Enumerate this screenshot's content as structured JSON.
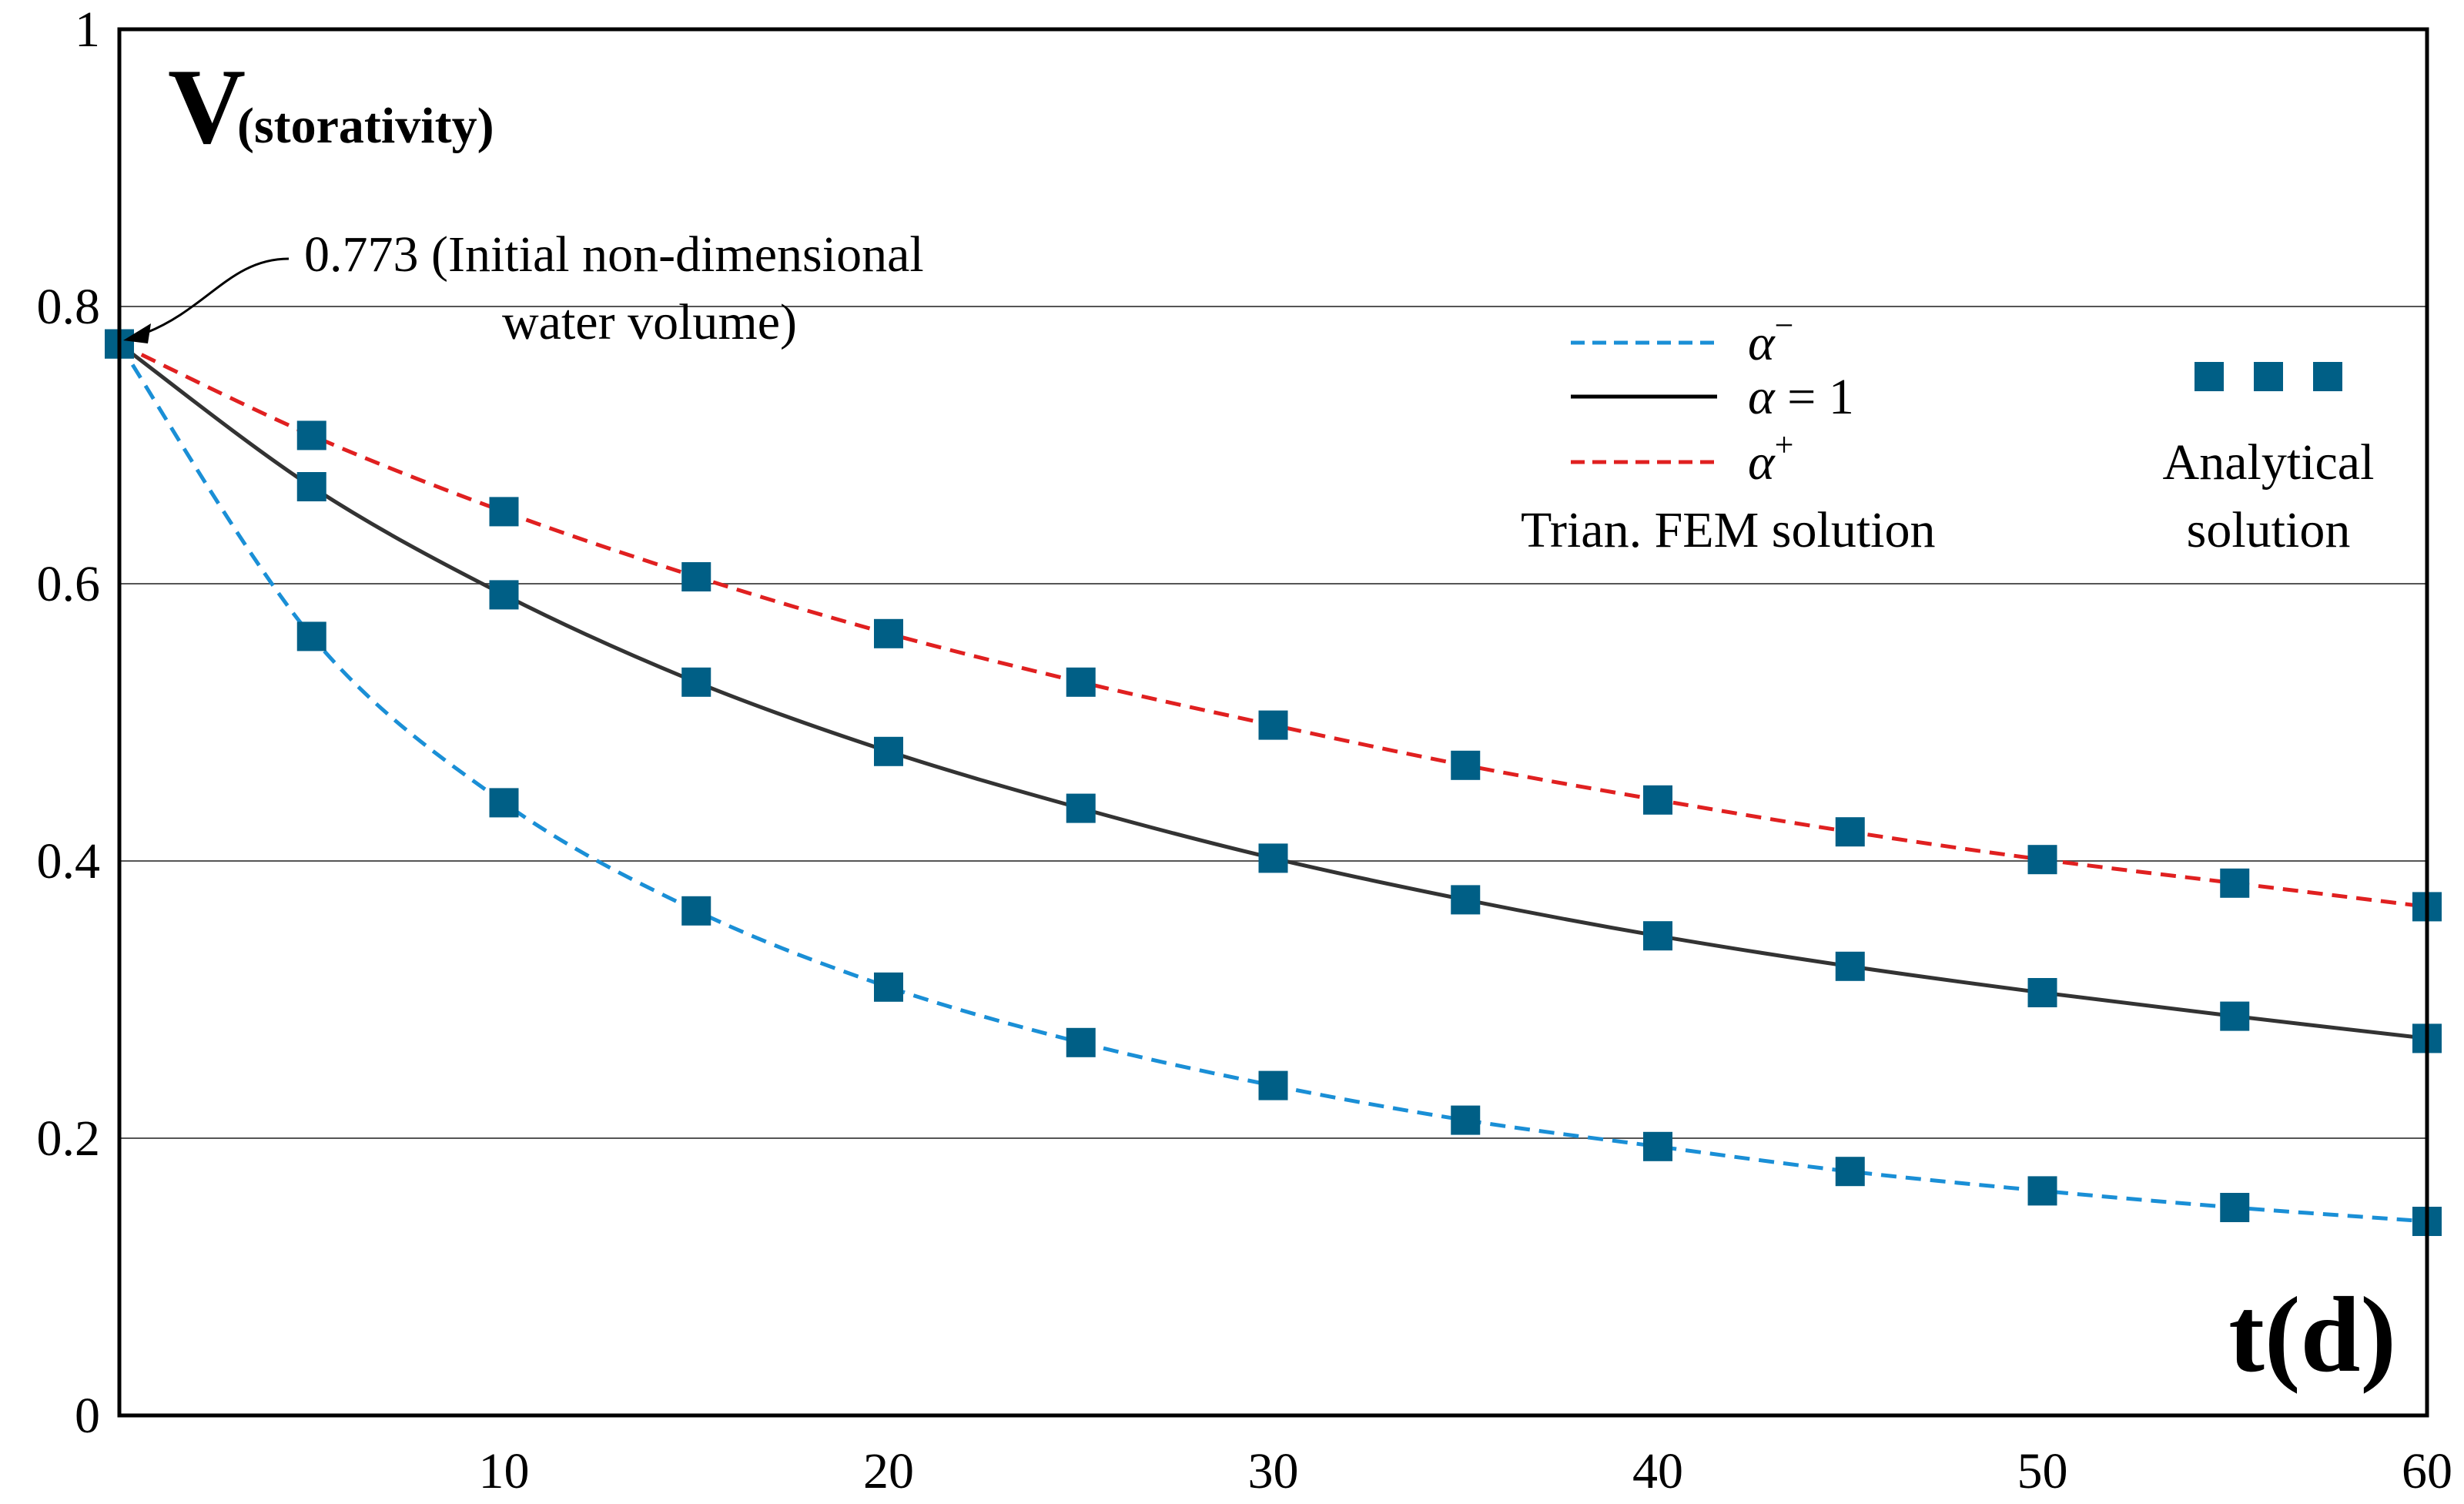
{
  "chart_data": {
    "type": "line",
    "xlabel": "t(d)",
    "ylabel": "V",
    "ylabel_sub": "(storativity)",
    "xlim": [
      0,
      60
    ],
    "ylim": [
      0,
      1
    ],
    "x_ticks": [
      10,
      20,
      30,
      40,
      50,
      60
    ],
    "y_ticks": [
      0,
      0.2,
      0.4,
      0.6,
      0.8,
      1
    ],
    "y_tick_labels": [
      "0",
      "0.2",
      "0.4",
      "0.6",
      "0.8",
      "1"
    ],
    "x_tick_labels": [
      "10",
      "20",
      "30",
      "40",
      "50",
      "60"
    ],
    "grid": "horizontal",
    "legend": {
      "placement": "top-right",
      "fem_entries": [
        {
          "symbol": "α",
          "sup": "−",
          "rest": ""
        },
        {
          "symbol": "α",
          "sup": "",
          "rest": " = 1"
        },
        {
          "symbol": "α",
          "sup": "+",
          "rest": ""
        }
      ],
      "fem_caption": "Trian. FEM solution",
      "analytical_caption_1": "Analytical",
      "analytical_caption_2": "solution"
    },
    "annotation": {
      "line1": "0.773 (Initial non-dimensional",
      "line2": "water volume)",
      "x": 0,
      "y": 0.773
    },
    "series": [
      {
        "legend_key": "alpha-minus",
        "color": "#1a8fd6",
        "dash": "dashed",
        "x": [
          0,
          5,
          10,
          15,
          20,
          25,
          30,
          35,
          40,
          45,
          50,
          55,
          60
        ],
        "values": [
          0.773,
          0.562,
          0.442,
          0.364,
          0.309,
          0.269,
          0.238,
          0.213,
          0.194,
          0.176,
          0.162,
          0.15,
          0.14
        ]
      },
      {
        "legend_key": "alpha-one",
        "color": "#333333",
        "dash": "solid",
        "x": [
          0,
          5,
          10,
          15,
          20,
          25,
          30,
          35,
          40,
          45,
          50,
          55,
          60
        ],
        "values": [
          0.773,
          0.67,
          0.592,
          0.529,
          0.479,
          0.438,
          0.402,
          0.372,
          0.346,
          0.324,
          0.305,
          0.288,
          0.272
        ]
      },
      {
        "legend_key": "alpha-plus",
        "color": "#e02020",
        "dash": "dashed",
        "x": [
          0,
          5,
          10,
          15,
          20,
          25,
          30,
          35,
          40,
          45,
          50,
          55,
          60
        ],
        "values": [
          0.773,
          0.707,
          0.652,
          0.605,
          0.564,
          0.529,
          0.498,
          0.469,
          0.444,
          0.421,
          0.401,
          0.384,
          0.367
        ]
      }
    ],
    "marker_color": "#005f86"
  }
}
